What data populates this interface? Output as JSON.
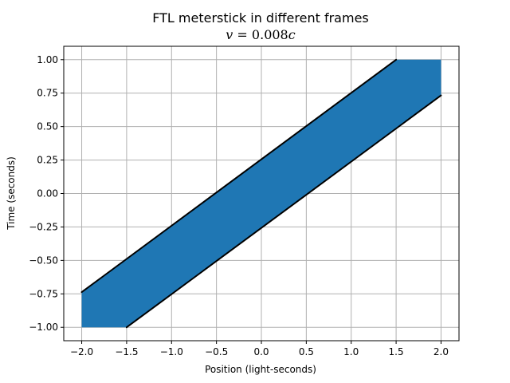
{
  "chart_data": {
    "type": "area",
    "title": "FTL meterstick in different frames",
    "subtitle": "v = 0.008c",
    "subtitle_parts": {
      "var": "v",
      "rest": " = 0.008",
      "unit": "c"
    },
    "xlabel": "Position (light-seconds)",
    "ylabel": "Time (seconds)",
    "xlim": [
      -2.2,
      2.2
    ],
    "ylim": [
      -1.1,
      1.1
    ],
    "xticks": [
      -2.0,
      -1.5,
      -1.0,
      -0.5,
      0.0,
      0.5,
      1.0,
      1.5,
      2.0
    ],
    "xtick_labels": [
      "−2.0",
      "−1.5",
      "−1.0",
      "−0.5",
      "0.0",
      "0.5",
      "1.0",
      "1.5",
      "2.0"
    ],
    "yticks": [
      -1.0,
      -0.75,
      -0.5,
      -0.25,
      0.0,
      0.25,
      0.5,
      0.75,
      1.0
    ],
    "ytick_labels": [
      "−1.00",
      "−0.75",
      "−0.50",
      "−0.25",
      "0.00",
      "0.25",
      "0.50",
      "0.75",
      "1.00"
    ],
    "grid": true,
    "fill": {
      "color": "#1f77b4",
      "polygon": [
        [
          -2.0,
          -1.0
        ],
        [
          -1.5,
          -1.0
        ],
        [
          2.0,
          0.733
        ],
        [
          2.0,
          1.0
        ],
        [
          1.5,
          1.0
        ],
        [
          -2.0,
          -0.737
        ]
      ]
    },
    "boundary_lines": {
      "color": "#000000",
      "lines": [
        {
          "x": [
            -2.0,
            1.5
          ],
          "y": [
            -0.737,
            1.0
          ]
        },
        {
          "x": [
            -1.5,
            2.0
          ],
          "y": [
            -1.0,
            0.733
          ]
        }
      ]
    }
  }
}
